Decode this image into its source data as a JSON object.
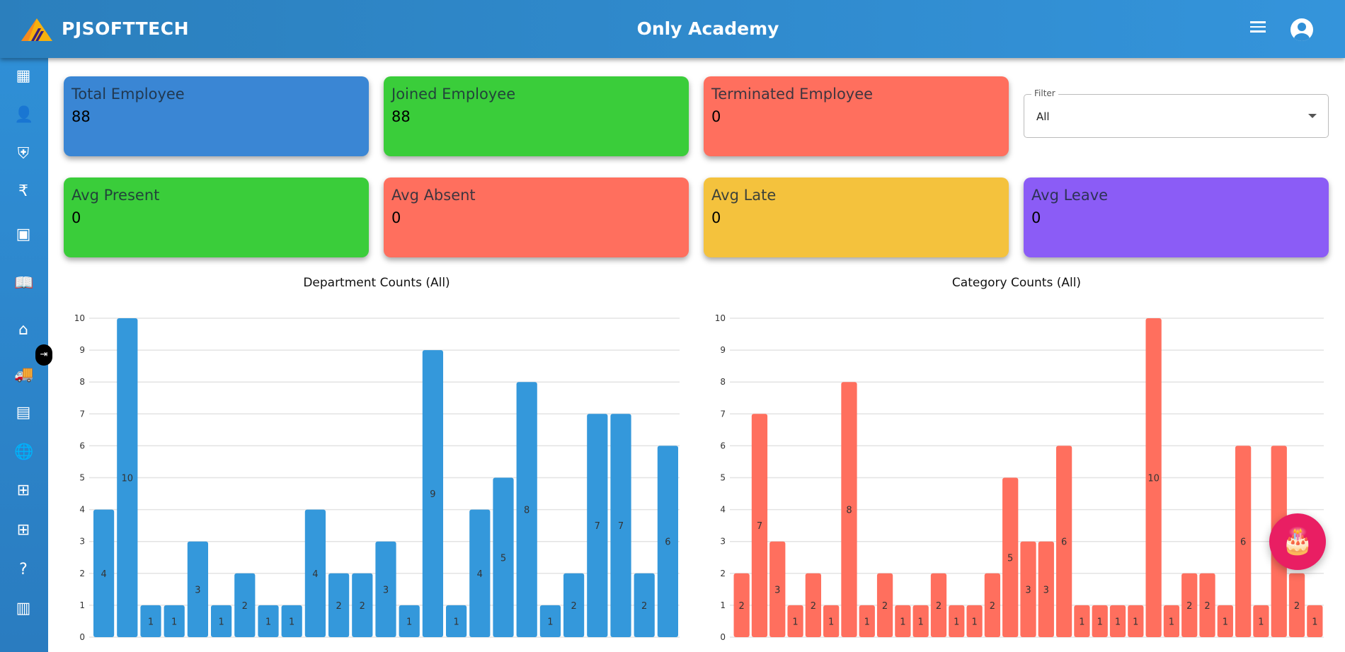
{
  "header": {
    "brand": "PJSOFTTECH",
    "title": "Only Academy"
  },
  "sidebar": {
    "items": [
      "dashboard-icon",
      "employee-search-icon",
      "security-icon",
      "rupee-icon",
      "contacts-icon",
      "reader-icon",
      "home-icon",
      "truck-icon",
      "wallet-icon",
      "globe-icon",
      "hierarchy-icon",
      "apps-icon",
      "help-icon",
      "invoice-icon"
    ]
  },
  "stats": [
    {
      "title": "Total Employee",
      "value": "88",
      "color": "#3a86d4"
    },
    {
      "title": "Joined Employee",
      "value": "88",
      "color": "#3acd3a"
    },
    {
      "title": "Terminated Employee",
      "value": "0",
      "color": "#ff6f5e"
    },
    {
      "title": "Avg Present",
      "value": "0",
      "color": "#3acd3a"
    },
    {
      "title": "Avg Absent",
      "value": "0",
      "color": "#ff6f5e"
    },
    {
      "title": "Avg Late",
      "value": "0",
      "color": "#f4c23d"
    },
    {
      "title": "Avg Leave",
      "value": "0",
      "color": "#8b5cf6"
    }
  ],
  "filter": {
    "label": "Filter",
    "value": "All"
  },
  "chart_data": [
    {
      "type": "bar",
      "title": "Department Counts (All)",
      "color": "#3498db",
      "ylim": [
        0,
        10
      ],
      "yticks": [
        0,
        1,
        2,
        3,
        4,
        5,
        6,
        7,
        8,
        9,
        10
      ],
      "grid": true,
      "values": [
        4,
        10,
        1,
        1,
        3,
        1,
        2,
        1,
        1,
        4,
        2,
        2,
        3,
        1,
        9,
        1,
        4,
        5,
        8,
        1,
        2,
        7,
        7,
        2,
        6
      ]
    },
    {
      "type": "bar",
      "title": "Category Counts (All)",
      "color": "#ff6f5e",
      "ylim": [
        0,
        10
      ],
      "yticks": [
        0,
        1,
        2,
        3,
        4,
        5,
        6,
        7,
        8,
        9,
        10
      ],
      "grid": true,
      "values": [
        2,
        7,
        3,
        1,
        2,
        1,
        8,
        1,
        2,
        1,
        1,
        2,
        1,
        1,
        2,
        5,
        3,
        3,
        6,
        1,
        1,
        1,
        1,
        10,
        1,
        2,
        2,
        1,
        6,
        1,
        6,
        2,
        1
      ]
    }
  ]
}
